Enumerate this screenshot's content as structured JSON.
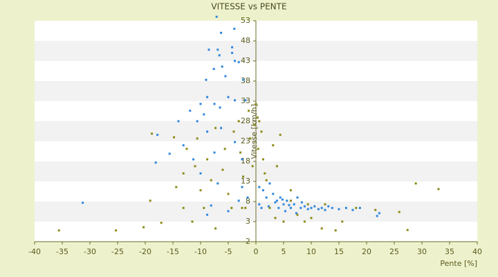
{
  "chart_data": {
    "type": "scatter",
    "title": "VITESSE vs PENTE",
    "x_label": "Pente [%]",
    "y_label": "Vitesse [km/h]",
    "xlim": [
      -40,
      40
    ],
    "xticks": [
      -40,
      -35,
      -30,
      -25,
      -20,
      -15,
      -10,
      -5,
      0,
      5,
      10,
      15,
      20,
      25,
      30,
      35,
      40
    ],
    "ylim": [
      -2,
      53
    ],
    "yticks": [
      -2,
      3,
      8,
      13,
      18,
      23,
      28,
      33,
      38,
      43,
      48,
      53
    ],
    "grid": true,
    "series": [
      {
        "color": "#2e86de",
        "x": [
          -7.1,
          -6.3,
          -3.9,
          -8.5,
          -6.9,
          -6.6,
          -4.3,
          -4.3,
          -7.6,
          -6.1,
          -3.8,
          -3.1,
          -9,
          -5.5,
          -2.3,
          -8.8,
          -10,
          -9.4,
          -11.9,
          -7.5,
          -6.5,
          -5,
          -3.8,
          -1.9,
          -10.6,
          -14,
          -8.8,
          -6.3,
          -17.8,
          -15.6,
          -18.1,
          -13.1,
          -11.3,
          -7.5,
          -3.8,
          -2.5,
          -10,
          -6.9,
          -2.5,
          -31.3,
          -8.1,
          -8.8,
          -5,
          -3.1,
          -1.5,
          0.6,
          1.3,
          2.5,
          1.9,
          3.1,
          3.8,
          4.4,
          5,
          5.6,
          6.3,
          6.9,
          7.5,
          8.1,
          8.8,
          9.4,
          10,
          10.6,
          11.3,
          11.9,
          12.5,
          13.1,
          13.8,
          15,
          16.3,
          17.5,
          18.8,
          21.9,
          22.3,
          1,
          2.3,
          3.5,
          4.8,
          6,
          5.3,
          7.3,
          8.3,
          4.1,
          0.6
        ],
        "values": [
          54,
          50,
          51,
          45.8,
          45.8,
          44.4,
          46.4,
          45,
          41,
          41.6,
          43,
          42.7,
          38.3,
          39.2,
          38.3,
          34,
          32.3,
          29.7,
          30.6,
          32.3,
          31.4,
          34,
          33.2,
          33.2,
          28,
          28,
          25.4,
          26.3,
          24.6,
          19.9,
          17.7,
          22,
          18.5,
          20.2,
          22.8,
          18.5,
          15,
          12.5,
          11.6,
          7.7,
          7,
          4.7,
          5.6,
          8.2,
          9,
          11.6,
          10.8,
          12.5,
          9,
          9.9,
          8.2,
          9,
          7.3,
          8.2,
          6.4,
          7.3,
          9,
          6.4,
          6.8,
          6.1,
          6.4,
          6.8,
          6.1,
          6.4,
          5.9,
          6.8,
          6.4,
          6.1,
          6.4,
          5.9,
          6.4,
          4.4,
          5.1,
          6.4,
          6.8,
          7.8,
          8.5,
          7.1,
          5.6,
          5.1,
          7.8,
          6.4,
          7.3
        ]
      },
      {
        "color": "#8a8a14",
        "x": [
          -35.6,
          -25.3,
          -20.3,
          -17.1,
          -19.1,
          -18.8,
          -14.8,
          -13.1,
          -14.4,
          -13.1,
          -11.5,
          -12.5,
          -10.6,
          -11,
          -10,
          -8.8,
          -8.1,
          -9.4,
          -7.3,
          -7.3,
          -5.6,
          -6,
          -5,
          -4.4,
          -4,
          -3.1,
          -2.8,
          -2.3,
          -1.9,
          -1.3,
          -1,
          -0.6,
          -0.3,
          0,
          0.3,
          0.6,
          1,
          0.4,
          1.3,
          1.9,
          2.5,
          3.5,
          5,
          6.3,
          7.5,
          8.8,
          10,
          11.9,
          14.4,
          15.6,
          18.1,
          21.6,
          25.9,
          27.4,
          28.9,
          33,
          3.8,
          4.4,
          3.1,
          1.6,
          6.3,
          9.4,
          12.5,
          -2.5
        ],
        "values": [
          0.8,
          0.8,
          1.6,
          2.7,
          8.2,
          24.9,
          24,
          15,
          11.6,
          6.4,
          3,
          21.1,
          23.7,
          16.8,
          10.8,
          18.5,
          13.3,
          6.4,
          1.3,
          26.3,
          21.1,
          15.9,
          9.9,
          6.4,
          25.4,
          28,
          20.2,
          14.2,
          6.4,
          30.6,
          23.7,
          16.8,
          27.1,
          32.3,
          28.9,
          28,
          25.4,
          21.1,
          18.5,
          13.3,
          6.4,
          3.9,
          3,
          10.8,
          4.7,
          3,
          3.9,
          1.3,
          0.8,
          3,
          6.4,
          5.9,
          5.4,
          0.9,
          12.5,
          11.1,
          16.8,
          24.6,
          22,
          15,
          8.2,
          7.3,
          7.3,
          6.4
        ]
      }
    ]
  }
}
